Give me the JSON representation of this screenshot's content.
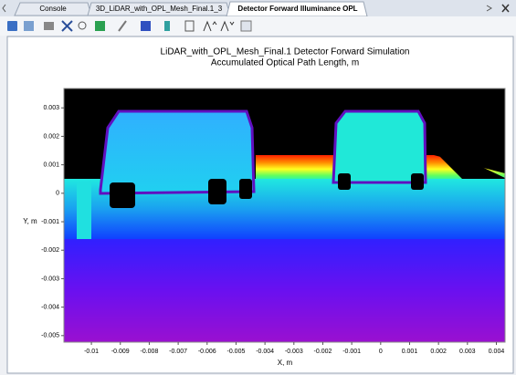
{
  "tabs": [
    "Console",
    "3D_LiDAR_with_OPL_Mesh_Final.1_3",
    "Detector Forward Illuminance OPL"
  ],
  "plot": {
    "title": [
      "LiDAR_with_OPL_Mesh_Final.1 Detector Forward Simulation",
      "Accumulated Optical Path Length, m"
    ],
    "xlabel": "X, m",
    "ylabel": "Y, m",
    "xlim": [
      -0.01095,
      0.0043
    ],
    "ylim": [
      -0.00523,
      0.00368
    ],
    "xticks": [
      -0.01,
      -0.009,
      -0.008,
      -0.007,
      -0.006,
      -0.005,
      -0.004,
      -0.003,
      -0.002,
      -0.001,
      0,
      0.001,
      0.002,
      0.003,
      0.004
    ],
    "yticks": [
      0.003,
      0.002,
      0.001,
      0,
      -0.001,
      -0.002,
      -0.003,
      -0.004,
      -0.005
    ]
  }
}
